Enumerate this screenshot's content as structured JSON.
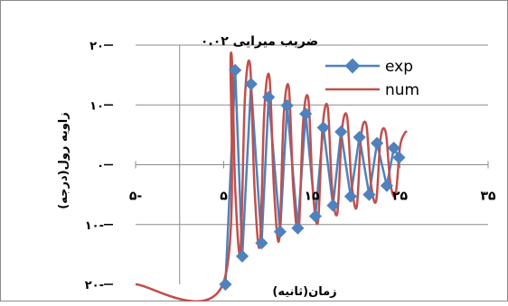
{
  "chart_data": {
    "type": "line",
    "title": "ضریب میرایی ۰.۰۲",
    "xlabel": "زمان(ثانیه)",
    "ylabel": "زاویه رول(درجه)",
    "xlim": [
      -5,
      35
    ],
    "ylim": [
      -20,
      20
    ],
    "x_ticks": [
      {
        "value": -5,
        "label": "۵-"
      },
      {
        "value": 5,
        "label": "۵"
      },
      {
        "value": 15,
        "label": "۱۵"
      },
      {
        "value": 25,
        "label": "۲۵"
      },
      {
        "value": 35,
        "label": "۳۵"
      }
    ],
    "y_ticks": [
      {
        "value": 20,
        "label": "۲۰"
      },
      {
        "value": 10,
        "label": "۱۰"
      },
      {
        "value": 0,
        "label": "۰"
      },
      {
        "value": -10,
        "label": "۱۰-"
      },
      {
        "value": -20,
        "label": "۲۰-"
      }
    ],
    "grid": "horizontal",
    "legend_position": "top-right",
    "series": [
      {
        "name": "exp",
        "color": "#4f81bd",
        "marker": "diamond",
        "x": [
          5.2,
          6.3,
          7.1,
          8.1,
          9.3,
          10.1,
          11.4,
          12.2,
          13.4,
          14.3,
          15.4,
          16.3,
          17.4,
          18.3,
          19.4,
          20.4,
          21.5,
          22.4,
          23.5,
          24.3,
          24.9
        ],
        "y": [
          -20,
          15.8,
          -15.3,
          13.5,
          -13.1,
          11.3,
          -11.2,
          9.9,
          -10.6,
          8.5,
          -8.6,
          6.2,
          -6.8,
          5.5,
          -5.3,
          4.6,
          -5.0,
          3.6,
          -3.5,
          2.8,
          1.2
        ]
      },
      {
        "name": "num",
        "color": "#c0504d",
        "x": [
          -5,
          4.9,
          5.8,
          6.3,
          6.9,
          7.4,
          8.0,
          8.5,
          9.1,
          9.6,
          10.2,
          10.7,
          11.3,
          11.8,
          12.4,
          12.9,
          13.5,
          14.0,
          14.6,
          15.1,
          15.7,
          16.2,
          16.8,
          17.3,
          17.9,
          18.4,
          19.0,
          19.5,
          20.1,
          20.6,
          21.2,
          21.7,
          22.3,
          22.8,
          23.4,
          23.9,
          24.5,
          25.0,
          25.5,
          25.8
        ],
        "y": [
          -20,
          -20,
          18.5,
          -4,
          -14.5,
          11,
          16.5,
          -4,
          -13.5,
          9,
          14.5,
          -4,
          -12.5,
          8,
          12.8,
          -4,
          -11,
          7,
          11,
          -4,
          -9.5,
          6,
          9.6,
          -4,
          -8,
          5.5,
          8,
          -3,
          -7,
          5,
          6.5,
          -3,
          -6,
          4.5,
          5.3,
          -3,
          -5,
          3,
          5.2,
          5.6
        ]
      }
    ]
  }
}
